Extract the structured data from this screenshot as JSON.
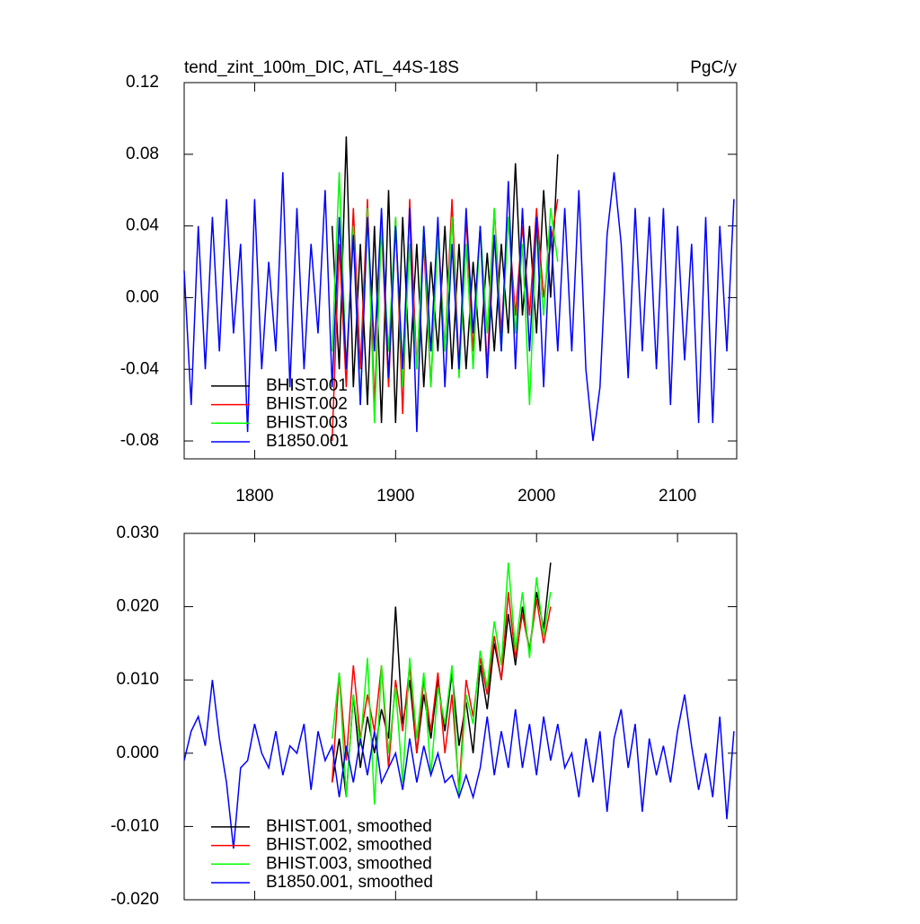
{
  "chart_data": [
    {
      "type": "line",
      "title": "tend_zint_100m_DIC, ATL_44S-18S",
      "unit_label": "PgC/y",
      "xlim": [
        1750,
        2142
      ],
      "xticks": [
        1800,
        1900,
        2000,
        2100
      ],
      "xtick_labels": true,
      "ylim": [
        -0.09,
        0.12
      ],
      "yticks": [
        0.12,
        0.08,
        0.04,
        {
          "value": 0,
          "label": "0.00"
        },
        -0.04,
        -0.08
      ],
      "legend": "lower left",
      "series": [
        {
          "name": "BHIST.001",
          "color": "#000000",
          "x": [
            1855,
            1860,
            1865,
            1870,
            1875,
            1880,
            1885,
            1890,
            1895,
            1900,
            1905,
            1910,
            1915,
            1920,
            1925,
            1930,
            1935,
            1940,
            1945,
            1950,
            1955,
            1960,
            1965,
            1970,
            1975,
            1980,
            1985,
            1990,
            1995,
            2000,
            2005,
            2010,
            2015
          ],
          "values": [
            0.04,
            -0.04,
            0.09,
            -0.05,
            0.03,
            -0.06,
            0.04,
            -0.07,
            0.06,
            -0.07,
            0.045,
            -0.04,
            0.03,
            -0.05,
            0.02,
            -0.03,
            0.04,
            -0.04,
            0.03,
            -0.04,
            0.02,
            -0.03,
            0.025,
            -0.03,
            0.03,
            -0.02,
            0.075,
            -0.01,
            0.04,
            -0.02,
            0.06,
            0.0,
            0.08
          ]
        },
        {
          "name": "BHIST.002",
          "color": "#ff0000",
          "x": [
            1855,
            1860,
            1865,
            1870,
            1875,
            1880,
            1885,
            1890,
            1895,
            1900,
            1905,
            1910,
            1915,
            1920,
            1925,
            1930,
            1935,
            1940,
            1945,
            1950,
            1955,
            1960,
            1965,
            1970,
            1975,
            1980,
            1985,
            1990,
            1995,
            2000,
            2005,
            2010,
            2015
          ],
          "values": [
            -0.08,
            0.03,
            -0.05,
            0.05,
            -0.04,
            0.055,
            -0.06,
            0.04,
            -0.05,
            0.045,
            -0.065,
            0.055,
            -0.04,
            0.03,
            -0.05,
            0.04,
            -0.03,
            0.055,
            -0.04,
            0.045,
            -0.03,
            0.04,
            -0.04,
            0.05,
            -0.02,
            0.045,
            -0.01,
            0.04,
            -0.01,
            0.05,
            0.0,
            0.03,
            0.055
          ]
        },
        {
          "name": "BHIST.003",
          "color": "#00ff00",
          "x": [
            1855,
            1860,
            1865,
            1870,
            1875,
            1880,
            1885,
            1890,
            1895,
            1900,
            1905,
            1910,
            1915,
            1920,
            1925,
            1930,
            1935,
            1940,
            1945,
            1950,
            1955,
            1960,
            1965,
            1970,
            1975,
            1980,
            1985,
            1990,
            1995,
            2000,
            2005,
            2010,
            2015
          ],
          "values": [
            -0.03,
            0.07,
            -0.04,
            0.04,
            -0.06,
            0.05,
            -0.07,
            0.04,
            -0.03,
            0.045,
            -0.05,
            0.03,
            -0.04,
            0.04,
            -0.05,
            0.035,
            -0.03,
            0.045,
            -0.045,
            0.03,
            -0.04,
            0.04,
            -0.02,
            0.05,
            -0.03,
            0.045,
            -0.02,
            0.03,
            -0.06,
            0.04,
            -0.01,
            0.05,
            0.02
          ]
        },
        {
          "name": "B1850.001",
          "color": "#0000ff",
          "x": [
            1750,
            1755,
            1760,
            1765,
            1770,
            1775,
            1780,
            1785,
            1790,
            1795,
            1800,
            1805,
            1810,
            1815,
            1820,
            1825,
            1830,
            1835,
            1840,
            1845,
            1850,
            1855,
            1860,
            1865,
            1870,
            1875,
            1880,
            1885,
            1890,
            1895,
            1900,
            1905,
            1910,
            1915,
            1920,
            1925,
            1930,
            1935,
            1940,
            1945,
            1950,
            1955,
            1960,
            1965,
            1970,
            1975,
            1980,
            1985,
            1990,
            1995,
            2000,
            2005,
            2010,
            2015,
            2020,
            2025,
            2030,
            2035,
            2040,
            2045,
            2050,
            2055,
            2060,
            2065,
            2070,
            2075,
            2080,
            2085,
            2090,
            2095,
            2100,
            2105,
            2110,
            2115,
            2120,
            2125,
            2130,
            2135,
            2140
          ],
          "values": [
            0.015,
            -0.06,
            0.04,
            -0.04,
            0.045,
            -0.03,
            0.055,
            -0.02,
            0.03,
            -0.075,
            0.055,
            -0.04,
            0.02,
            -0.03,
            0.07,
            -0.05,
            0.05,
            -0.04,
            0.03,
            -0.02,
            0.06,
            -0.05,
            0.045,
            -0.04,
            0.035,
            -0.06,
            0.045,
            -0.03,
            0.05,
            -0.045,
            0.04,
            -0.04,
            0.05,
            -0.075,
            0.04,
            -0.03,
            0.045,
            -0.05,
            0.03,
            -0.04,
            0.05,
            -0.02,
            0.04,
            -0.045,
            0.035,
            -0.03,
            0.065,
            -0.04,
            0.05,
            -0.03,
            0.045,
            -0.05,
            0.04,
            -0.03,
            0.05,
            -0.03,
            0.06,
            -0.04,
            -0.08,
            -0.05,
            0.035,
            0.07,
            0.03,
            -0.045,
            0.05,
            -0.03,
            0.045,
            -0.04,
            0.05,
            -0.06,
            0.04,
            -0.035,
            0.03,
            -0.07,
            0.045,
            -0.07,
            0.04,
            -0.03,
            0.055
          ]
        }
      ]
    },
    {
      "type": "line",
      "xlim": [
        1750,
        2142
      ],
      "xticks": [
        1800,
        1900,
        2000,
        2100
      ],
      "xtick_labels": false,
      "ylim": [
        -0.02,
        0.03
      ],
      "yticks": [
        {
          "value": 0.03,
          "label": "0.030"
        },
        {
          "value": 0.02,
          "label": "0.020"
        },
        {
          "value": 0.01,
          "label": "0.010"
        },
        {
          "value": 0,
          "label": "0.000"
        },
        {
          "value": -0.01,
          "label": "-0.010"
        },
        {
          "value": -0.02,
          "label": "-0.020"
        }
      ],
      "legend": "lower left",
      "series": [
        {
          "name": "BHIST.001, smoothed",
          "color": "#000000",
          "x": [
            1855,
            1860,
            1865,
            1870,
            1875,
            1880,
            1885,
            1890,
            1895,
            1900,
            1905,
            1910,
            1915,
            1920,
            1925,
            1930,
            1935,
            1940,
            1945,
            1950,
            1955,
            1960,
            1965,
            1970,
            1975,
            1980,
            1985,
            1990,
            1995,
            2000,
            2005,
            2010
          ],
          "values": [
            -0.004,
            0.002,
            -0.006,
            0.008,
            -0.002,
            0.005,
            0.0,
            0.006,
            0.002,
            0.02,
            0.004,
            0.01,
            0.0,
            0.008,
            0.002,
            0.01,
            0.003,
            0.011,
            0.001,
            0.007,
            0.0,
            0.012,
            0.006,
            0.015,
            0.01,
            0.019,
            0.012,
            0.02,
            0.014,
            0.022,
            0.017,
            0.026
          ]
        },
        {
          "name": "BHIST.002, smoothed",
          "color": "#ff0000",
          "x": [
            1855,
            1860,
            1865,
            1870,
            1875,
            1880,
            1885,
            1890,
            1895,
            1900,
            1905,
            1910,
            1915,
            1920,
            1925,
            1930,
            1935,
            1940,
            1945,
            1950,
            1955,
            1960,
            1965,
            1970,
            1975,
            1980,
            1985,
            1990,
            1995,
            2000,
            2005,
            2010
          ],
          "values": [
            -0.004,
            0.011,
            -0.001,
            0.012,
            0.002,
            0.008,
            0.003,
            0.012,
            -0.002,
            0.01,
            0.003,
            0.012,
            0.0,
            0.01,
            0.003,
            0.011,
            0.0,
            0.008,
            -0.005,
            0.01,
            0.005,
            0.013,
            0.008,
            0.016,
            0.01,
            0.022,
            0.013,
            0.019,
            0.014,
            0.021,
            0.015,
            0.02
          ]
        },
        {
          "name": "BHIST.003, smoothed",
          "color": "#00ff00",
          "x": [
            1855,
            1860,
            1865,
            1870,
            1875,
            1880,
            1885,
            1890,
            1895,
            1900,
            1905,
            1910,
            1915,
            1920,
            1925,
            1930,
            1935,
            1940,
            1945,
            1950,
            1955,
            1960,
            1965,
            1970,
            1975,
            1980,
            1985,
            1990,
            1995,
            2000,
            2005,
            2010
          ],
          "values": [
            0.002,
            0.011,
            -0.006,
            0.008,
            0.001,
            0.013,
            -0.007,
            0.012,
            0.0,
            0.009,
            -0.004,
            0.013,
            0.002,
            0.011,
            -0.003,
            0.009,
            0.004,
            0.012,
            -0.006,
            0.008,
            0.004,
            0.014,
            0.009,
            0.018,
            0.012,
            0.026,
            0.014,
            0.022,
            0.013,
            0.024,
            0.016,
            0.022
          ]
        },
        {
          "name": "B1850.001, smoothed",
          "color": "#0000ff",
          "x": [
            1750,
            1755,
            1760,
            1765,
            1770,
            1775,
            1780,
            1785,
            1790,
            1795,
            1800,
            1805,
            1810,
            1815,
            1820,
            1825,
            1830,
            1835,
            1840,
            1845,
            1850,
            1855,
            1860,
            1865,
            1870,
            1875,
            1880,
            1885,
            1890,
            1895,
            1900,
            1905,
            1910,
            1915,
            1920,
            1925,
            1930,
            1935,
            1940,
            1945,
            1950,
            1955,
            1960,
            1965,
            1970,
            1975,
            1980,
            1985,
            1990,
            1995,
            2000,
            2005,
            2010,
            2015,
            2020,
            2025,
            2030,
            2035,
            2040,
            2045,
            2050,
            2055,
            2060,
            2065,
            2070,
            2075,
            2080,
            2085,
            2090,
            2095,
            2100,
            2105,
            2110,
            2115,
            2120,
            2125,
            2130,
            2135,
            2140
          ],
          "values": [
            -0.001,
            0.003,
            0.005,
            0.001,
            0.01,
            0.002,
            -0.004,
            -0.013,
            -0.002,
            -0.001,
            0.004,
            0.0,
            -0.002,
            0.003,
            -0.003,
            0.001,
            0.0,
            0.004,
            -0.005,
            0.003,
            -0.001,
            0.001,
            -0.006,
            0.001,
            -0.004,
            0.002,
            -0.003,
            0.003,
            -0.004,
            -0.002,
            0.0,
            -0.005,
            0.002,
            -0.004,
            0.001,
            -0.003,
            0.0,
            -0.004,
            -0.003,
            -0.006,
            -0.003,
            -0.006,
            -0.002,
            0.005,
            -0.003,
            0.003,
            -0.002,
            0.006,
            -0.002,
            0.004,
            -0.003,
            0.005,
            -0.001,
            0.004,
            -0.002,
            0.0,
            -0.006,
            0.002,
            -0.004,
            0.003,
            -0.008,
            0.002,
            0.006,
            -0.002,
            0.004,
            -0.008,
            0.002,
            -0.003,
            0.001,
            -0.004,
            0.003,
            0.008,
            0.001,
            -0.005,
            0.0,
            -0.006,
            0.005,
            -0.009,
            0.003
          ]
        }
      ]
    }
  ]
}
